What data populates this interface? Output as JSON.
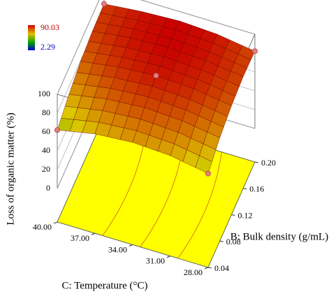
{
  "chart_data": {
    "type": "surface",
    "z_label": "Loss of organic matter (%)",
    "x_label": "C: Temperature (°C)",
    "y_label": "B: Bulk density (g/mL)",
    "x": [
      40,
      37,
      34,
      31,
      28
    ],
    "y": [
      0.04,
      0.08,
      0.12,
      0.16,
      0.2
    ],
    "z": [
      [
        62,
        72,
        79,
        83,
        84
      ],
      [
        70,
        79,
        85,
        88,
        88
      ],
      [
        73,
        82,
        88,
        90,
        90
      ],
      [
        71,
        80,
        86,
        88,
        88
      ],
      [
        64,
        74,
        80,
        83,
        82
      ]
    ],
    "xlim": [
      40,
      28
    ],
    "xticks": [
      {
        "value": 40,
        "label": "40.00"
      },
      {
        "value": 37,
        "label": "37.00"
      },
      {
        "value": 34,
        "label": "34.00"
      },
      {
        "value": 31,
        "label": "31.00"
      },
      {
        "value": 28,
        "label": "28.00"
      }
    ],
    "ylim": [
      0.04,
      0.2
    ],
    "yticks": [
      0.04,
      0.08,
      0.12,
      0.16,
      {
        "value": 0.2,
        "label": "0.20"
      }
    ],
    "zlim": [
      0,
      100
    ],
    "zticks": [
      0,
      20,
      40,
      60,
      80,
      100
    ],
    "colorbar": {
      "max": 90.03,
      "min": 2.29
    },
    "design_points": [
      {
        "x": 40,
        "y": 0.04,
        "z": 62
      },
      {
        "x": 40,
        "y": 0.2,
        "z": 84
      },
      {
        "x": 34,
        "y": 0.12,
        "z": 88
      },
      {
        "x": 28,
        "y": 0.2,
        "z": 82
      },
      {
        "x": 28,
        "y": 0.04,
        "z": 64
      }
    ],
    "point_color": "#e88080",
    "floor_color": "#ffff00"
  }
}
